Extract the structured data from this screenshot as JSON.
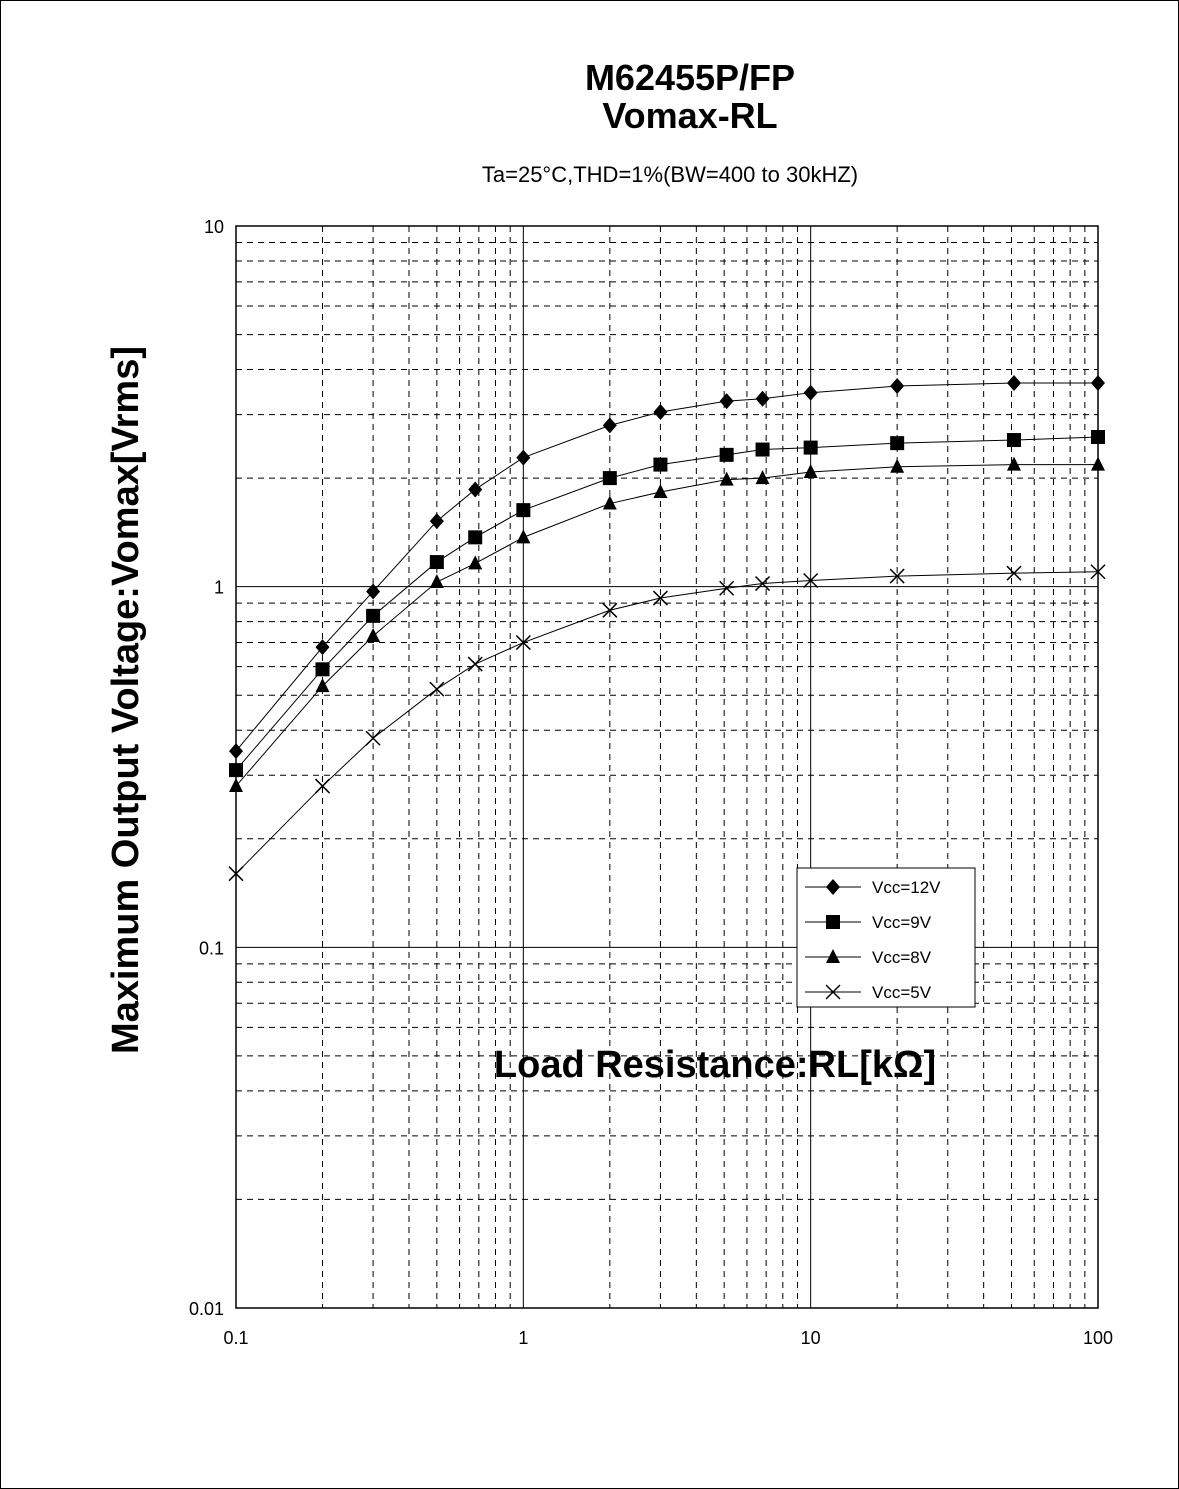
{
  "chart_data": {
    "type": "line",
    "title_line1": "M62455P/FP",
    "title_line2": "Vomax-RL",
    "subtitle": "Ta=25°C,THD=1%(BW=400 to 30kHZ)",
    "xlabel": "Load Resistance:RL[kΩ]",
    "ylabel": "Maximum Output Voltage:Vomax[Vrms]",
    "x_scale": "log",
    "y_scale": "log",
    "xlim": [
      0.1,
      100
    ],
    "ylim": [
      0.01,
      10
    ],
    "x_ticks": [
      0.1,
      1,
      10,
      100
    ],
    "x_tick_labels": [
      "0.1",
      "1",
      "10",
      "100"
    ],
    "y_ticks": [
      0.01,
      0.1,
      1,
      10
    ],
    "y_tick_labels": [
      "0.01",
      "0.1",
      "1",
      "10"
    ],
    "grid": true,
    "legend_position": "right-center",
    "x": [
      0.1,
      0.2,
      0.3,
      0.5,
      0.68,
      1,
      2,
      3,
      5.1,
      6.8,
      10,
      20,
      51,
      100
    ],
    "series": [
      {
        "name": "Vcc=12V",
        "marker": "diamond",
        "values": [
          0.35,
          0.68,
          0.97,
          1.52,
          1.86,
          2.28,
          2.8,
          3.05,
          3.27,
          3.32,
          3.45,
          3.6,
          3.67,
          3.67
        ]
      },
      {
        "name": "Vcc=9V",
        "marker": "square",
        "values": [
          0.31,
          0.59,
          0.83,
          1.17,
          1.37,
          1.63,
          2.0,
          2.18,
          2.32,
          2.4,
          2.43,
          2.5,
          2.55,
          2.6
        ]
      },
      {
        "name": "Vcc=8V",
        "marker": "triangle",
        "values": [
          0.28,
          0.53,
          0.73,
          1.03,
          1.16,
          1.37,
          1.7,
          1.83,
          1.98,
          2.0,
          2.08,
          2.15,
          2.18,
          2.18
        ]
      },
      {
        "name": "Vcc=5V",
        "marker": "x",
        "values": [
          0.16,
          0.28,
          0.38,
          0.52,
          0.61,
          0.7,
          0.86,
          0.93,
          0.99,
          1.02,
          1.04,
          1.07,
          1.09,
          1.1
        ]
      }
    ]
  }
}
